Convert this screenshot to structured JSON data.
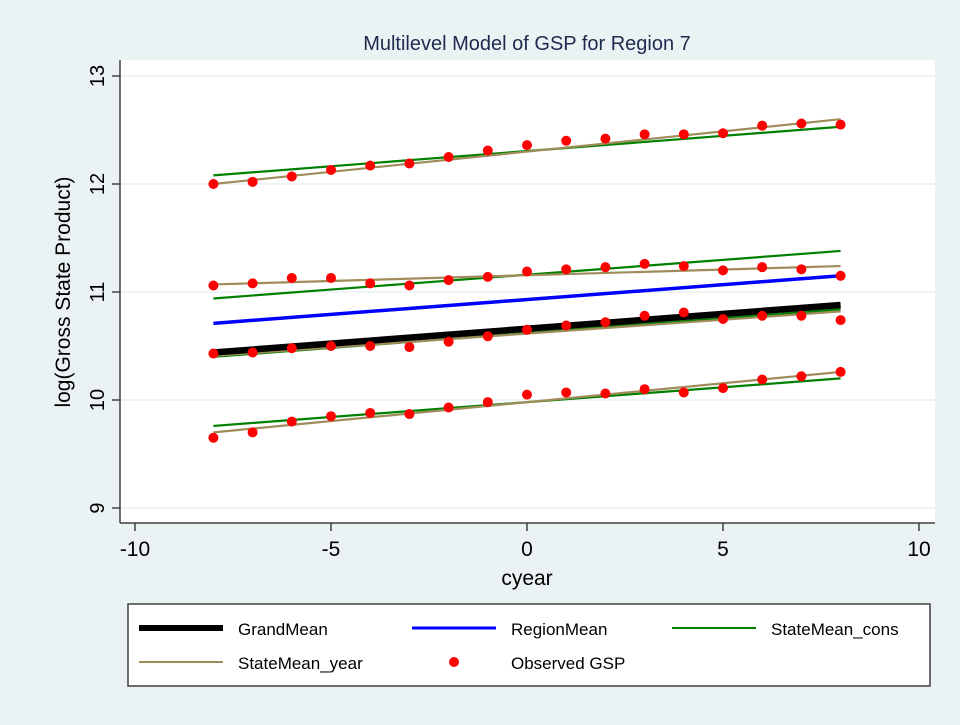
{
  "chart_data": {
    "type": "line",
    "title": "Multilevel Model of GSP for Region 7",
    "xlabel": "cyear",
    "ylabel": "log(Gross State Product)",
    "xlim": [
      -10,
      10
    ],
    "ylim": [
      9,
      13
    ],
    "xticks": [
      -10,
      -5,
      0,
      5,
      10
    ],
    "xtick_labels": [
      "-10",
      "-5",
      "0",
      "5",
      "10"
    ],
    "yticks": [
      9,
      10,
      11,
      12,
      13
    ],
    "ytick_labels": [
      "9",
      "10",
      "11",
      "12",
      "13"
    ],
    "grid": "horizontal",
    "legend_position": "bottom",
    "legend": [
      {
        "label": "GrandMean",
        "kind": "line",
        "color": "#000000",
        "weight": "thick"
      },
      {
        "label": "RegionMean",
        "kind": "line",
        "color": "#0000ff",
        "weight": "medium"
      },
      {
        "label": "StateMean_cons",
        "kind": "line",
        "color": "#008000",
        "weight": "thin"
      },
      {
        "label": "StateMean_year",
        "kind": "line",
        "color": "#a08c5a",
        "weight": "thin"
      },
      {
        "label": "Observed GSP",
        "kind": "marker",
        "color": "#ff0000"
      }
    ],
    "x": [
      -8,
      -7,
      -6,
      -5,
      -4,
      -3,
      -2,
      -1,
      0,
      1,
      2,
      3,
      4,
      5,
      6,
      7,
      8
    ],
    "lines": {
      "GrandMean": {
        "x": [
          -8,
          8
        ],
        "y": [
          10.44,
          10.88
        ]
      },
      "RegionMean": {
        "x": [
          -8,
          8
        ],
        "y": [
          10.71,
          11.15
        ]
      },
      "StateMean_cons": [
        {
          "x": [
            -8,
            8
          ],
          "y": [
            12.08,
            12.53
          ]
        },
        {
          "x": [
            -8,
            8
          ],
          "y": [
            10.94,
            11.38
          ]
        },
        {
          "x": [
            -8,
            8
          ],
          "y": [
            10.4,
            10.84
          ]
        },
        {
          "x": [
            -8,
            8
          ],
          "y": [
            9.76,
            10.2
          ]
        }
      ],
      "StateMean_year": [
        {
          "x": [
            -8,
            8
          ],
          "y": [
            12.0,
            12.6
          ]
        },
        {
          "x": [
            -8,
            8
          ],
          "y": [
            11.07,
            11.24
          ]
        },
        {
          "x": [
            -8,
            8
          ],
          "y": [
            10.41,
            10.82
          ]
        },
        {
          "x": [
            -8,
            8
          ],
          "y": [
            9.7,
            10.26
          ]
        }
      ]
    },
    "observed": [
      [
        12.0,
        12.02,
        12.07,
        12.13,
        12.17,
        12.19,
        12.25,
        12.31,
        12.36,
        12.4,
        12.42,
        12.46,
        12.46,
        12.47,
        12.54,
        12.56,
        12.55
      ],
      [
        11.06,
        11.08,
        11.13,
        11.13,
        11.08,
        11.06,
        11.11,
        11.14,
        11.19,
        11.21,
        11.23,
        11.26,
        11.24,
        11.2,
        11.23,
        11.21,
        11.15
      ],
      [
        10.43,
        10.44,
        10.48,
        10.5,
        10.5,
        10.49,
        10.54,
        10.59,
        10.65,
        10.69,
        10.72,
        10.78,
        10.81,
        10.75,
        10.78,
        10.78,
        10.74
      ],
      [
        9.65,
        9.7,
        9.8,
        9.85,
        9.88,
        9.87,
        9.93,
        9.98,
        10.05,
        10.07,
        10.06,
        10.1,
        10.07,
        10.11,
        10.19,
        10.22,
        10.26
      ]
    ]
  }
}
